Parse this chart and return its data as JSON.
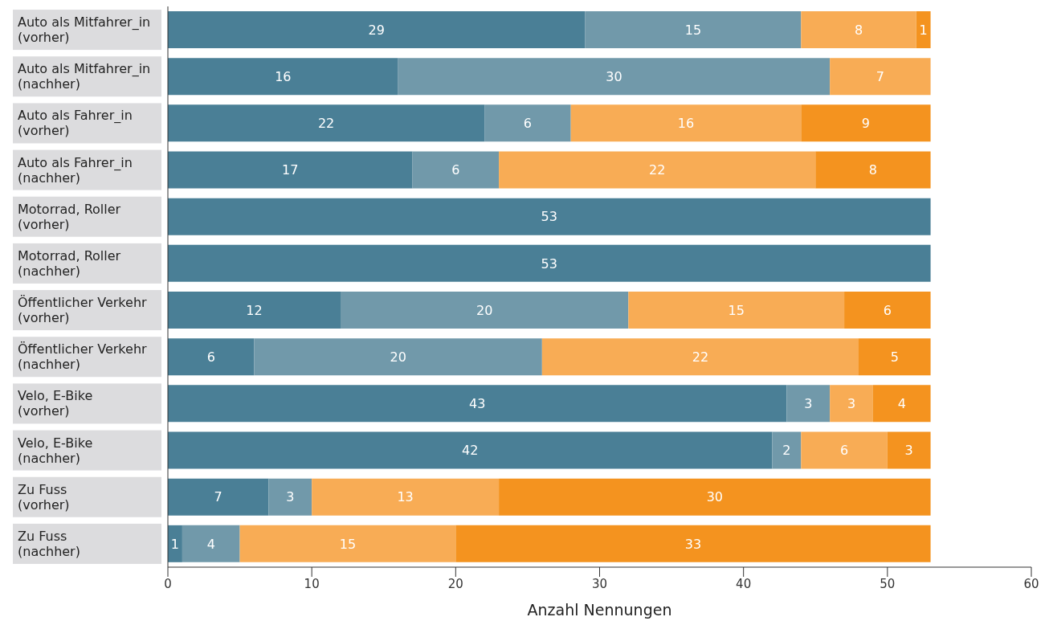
{
  "chart_data": {
    "type": "bar",
    "orientation": "horizontal",
    "stacked": true,
    "data_labels": true,
    "grid": false,
    "legend": false,
    "xlabel": "Anzahl Nennungen",
    "xlim": [
      0,
      60
    ],
    "xticks": [
      0,
      10,
      20,
      30,
      40,
      50,
      60
    ],
    "categories": [
      "Auto als Mitfahrer_in (vorher)",
      "Auto als Mitfahrer_in (nachher)",
      "Auto als Fahrer_in (vorher)",
      "Auto als Fahrer_in (nachher)",
      "Motorrad, Roller (vorher)",
      "Motorrad, Roller (nachher)",
      "Öffentlicher Verkehr (vorher)",
      "Öffentlicher Verkehr (nachher)",
      "Velo, E-Bike (vorher)",
      "Velo, E-Bike (nachher)",
      "Zu Fuss (vorher)",
      "Zu Fuss (nachher)"
    ],
    "series": [
      {
        "color": "#4a7f96",
        "values": [
          29,
          16,
          22,
          17,
          53,
          53,
          12,
          6,
          43,
          42,
          7,
          1
        ]
      },
      {
        "color": "#7199aa",
        "values": [
          15,
          30,
          6,
          6,
          null,
          null,
          20,
          20,
          3,
          2,
          3,
          4
        ]
      },
      {
        "color": "#f8ac55",
        "values": [
          8,
          7,
          16,
          22,
          null,
          null,
          15,
          22,
          3,
          6,
          13,
          15
        ]
      },
      {
        "color": "#f4931f",
        "values": [
          1,
          null,
          9,
          8,
          null,
          null,
          6,
          5,
          4,
          3,
          30,
          33
        ]
      }
    ]
  }
}
